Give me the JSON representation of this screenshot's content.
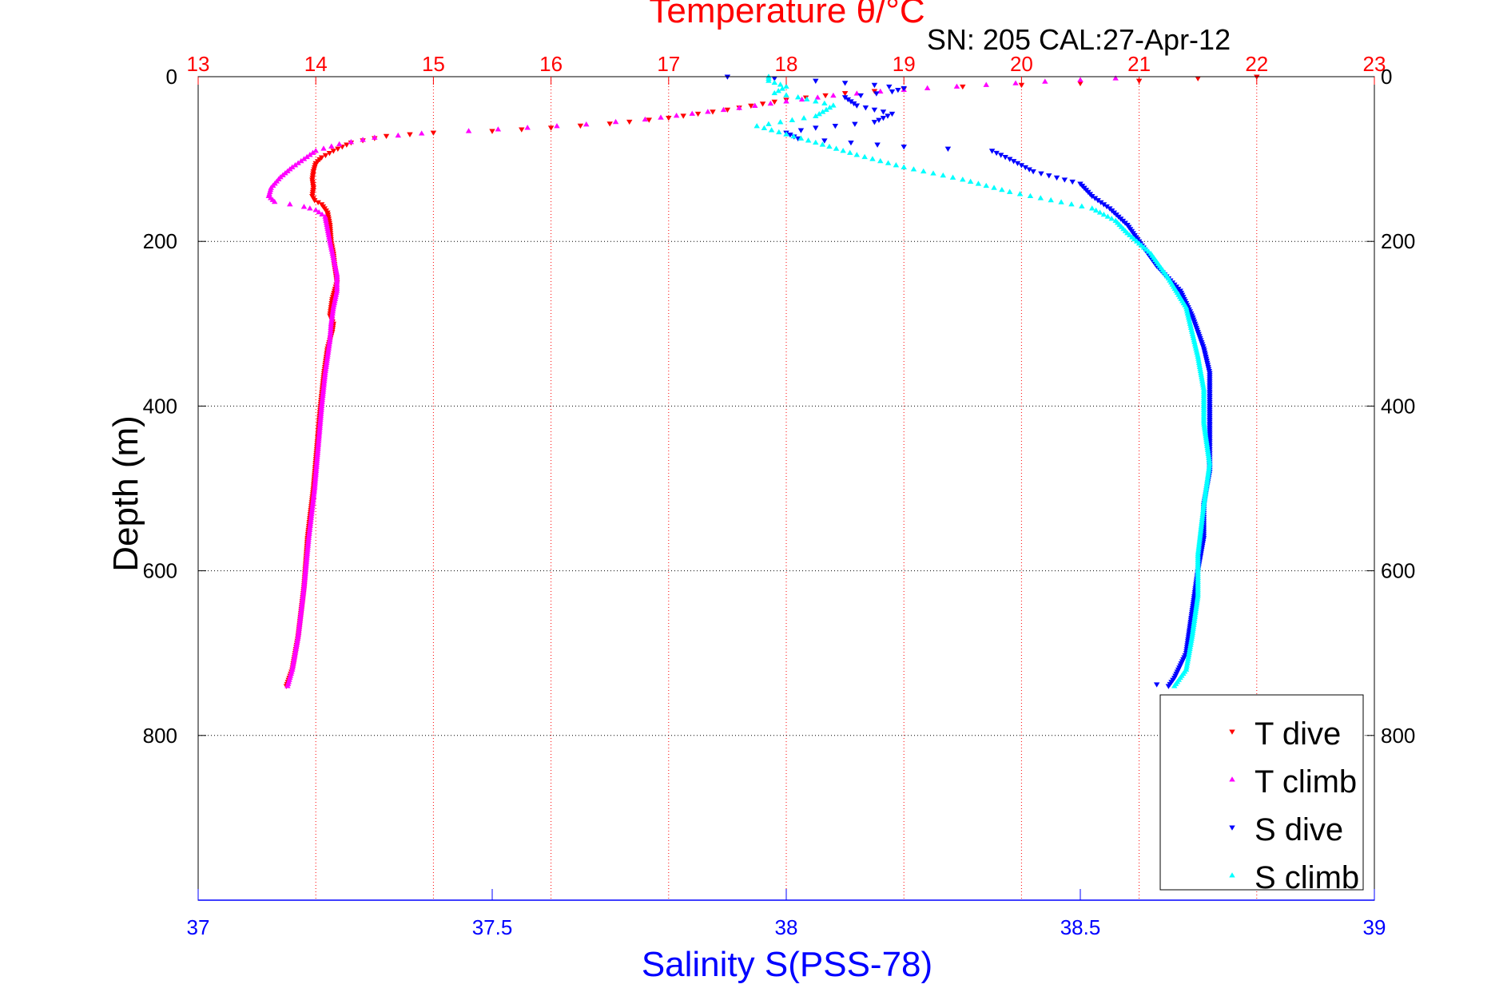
{
  "chart_data": {
    "type": "scatter",
    "title": "Temperature θ/°C",
    "subtitle": "SN: 205  CAL:27-Apr-12",
    "xlabel_bottom": "Salinity S(PSS-78)",
    "ylabel": "Depth (m)",
    "colors": {
      "temperature_axis": "#ff0000",
      "salinity_axis": "#0000ff",
      "T dive": "#ff0000",
      "T climb": "#ff00ff",
      "S dive": "#0000ff",
      "S climb": "#00ffff"
    },
    "axes": {
      "temperature": {
        "range": [
          13,
          23
        ],
        "ticks": [
          13,
          14,
          15,
          16,
          17,
          18,
          19,
          20,
          21,
          22,
          23
        ],
        "position": "top",
        "grid": true
      },
      "salinity": {
        "range": [
          37,
          39
        ],
        "ticks": [
          37,
          37.5,
          38,
          38.5,
          39
        ],
        "tick_labels": [
          "37",
          "37.5",
          "38",
          "38.5",
          "39"
        ],
        "position": "bottom"
      },
      "depth": {
        "range": [
          0,
          1000
        ],
        "ticks": [
          0,
          200,
          400,
          600,
          800
        ],
        "reversed": true,
        "grid": true,
        "position": "left and right"
      }
    },
    "legend": {
      "placement": "bottom-right",
      "entries": [
        "T dive",
        "T climb",
        "S dive",
        "S climb"
      ]
    },
    "series": [
      {
        "name": "T dive",
        "axis": "temperature",
        "marker": "triangle-down",
        "points": [
          [
            22.0,
            0
          ],
          [
            21.5,
            2
          ],
          [
            21.0,
            5
          ],
          [
            20.5,
            8
          ],
          [
            20.0,
            10
          ],
          [
            19.5,
            12
          ],
          [
            19.0,
            15
          ],
          [
            18.5,
            20
          ],
          [
            18.0,
            28
          ],
          [
            17.5,
            40
          ],
          [
            17.0,
            50
          ],
          [
            16.5,
            57
          ],
          [
            16.0,
            62
          ],
          [
            15.5,
            66
          ],
          [
            15.0,
            68
          ],
          [
            14.6,
            72
          ],
          [
            14.3,
            80
          ],
          [
            14.15,
            90
          ],
          [
            14.05,
            98
          ],
          [
            14.0,
            105
          ],
          [
            13.98,
            115
          ],
          [
            13.97,
            125
          ],
          [
            13.98,
            135
          ],
          [
            13.97,
            145
          ],
          [
            13.99,
            150
          ],
          [
            14.05,
            155
          ],
          [
            14.1,
            165
          ],
          [
            14.12,
            180
          ],
          [
            14.13,
            200
          ],
          [
            14.15,
            215
          ],
          [
            14.16,
            230
          ],
          [
            14.18,
            250
          ],
          [
            14.14,
            270
          ],
          [
            14.12,
            290
          ],
          [
            14.15,
            300
          ],
          [
            14.14,
            310
          ],
          [
            14.1,
            330
          ],
          [
            14.07,
            360
          ],
          [
            14.04,
            400
          ],
          [
            14.01,
            450
          ],
          [
            13.98,
            500
          ],
          [
            13.93,
            560
          ],
          [
            13.9,
            620
          ],
          [
            13.85,
            680
          ],
          [
            13.8,
            720
          ],
          [
            13.75,
            740
          ]
        ]
      },
      {
        "name": "T climb",
        "axis": "temperature",
        "marker": "triangle-up",
        "points": [
          [
            20.8,
            2
          ],
          [
            20.2,
            6
          ],
          [
            19.7,
            10
          ],
          [
            19.2,
            14
          ],
          [
            18.8,
            18
          ],
          [
            18.4,
            23
          ],
          [
            18.0,
            30
          ],
          [
            17.6,
            38
          ],
          [
            17.2,
            45
          ],
          [
            16.8,
            52
          ],
          [
            16.3,
            58
          ],
          [
            15.8,
            62
          ],
          [
            15.3,
            66
          ],
          [
            14.9,
            69
          ],
          [
            14.5,
            74
          ],
          [
            14.2,
            82
          ],
          [
            14.0,
            90
          ],
          [
            13.9,
            100
          ],
          [
            13.8,
            110
          ],
          [
            13.7,
            122
          ],
          [
            13.62,
            135
          ],
          [
            13.6,
            145
          ],
          [
            13.65,
            152
          ],
          [
            13.78,
            155
          ],
          [
            13.9,
            158
          ],
          [
            14.0,
            162
          ],
          [
            14.08,
            170
          ],
          [
            14.1,
            185
          ],
          [
            14.12,
            200
          ],
          [
            14.15,
            220
          ],
          [
            14.18,
            240
          ],
          [
            14.18,
            260
          ],
          [
            14.15,
            280
          ],
          [
            14.13,
            300
          ],
          [
            14.12,
            320
          ],
          [
            14.1,
            340
          ],
          [
            14.08,
            360
          ],
          [
            14.05,
            400
          ],
          [
            14.02,
            450
          ],
          [
            13.99,
            500
          ],
          [
            13.94,
            560
          ],
          [
            13.9,
            620
          ],
          [
            13.85,
            680
          ],
          [
            13.8,
            720
          ],
          [
            13.76,
            740
          ]
        ]
      },
      {
        "name": "S dive",
        "axis": "salinity",
        "marker": "triangle-down",
        "points": [
          [
            37.9,
            0
          ],
          [
            37.98,
            2
          ],
          [
            38.05,
            5
          ],
          [
            38.15,
            10
          ],
          [
            38.2,
            14
          ],
          [
            38.18,
            18
          ],
          [
            38.1,
            25
          ],
          [
            38.12,
            35
          ],
          [
            38.18,
            45
          ],
          [
            38.15,
            55
          ],
          [
            38.05,
            62
          ],
          [
            38.0,
            68
          ],
          [
            38.02,
            75
          ],
          [
            38.2,
            85
          ],
          [
            38.35,
            90
          ],
          [
            38.38,
            100
          ],
          [
            38.42,
            115
          ],
          [
            38.5,
            130
          ],
          [
            38.52,
            145
          ],
          [
            38.55,
            160
          ],
          [
            38.58,
            180
          ],
          [
            38.6,
            200
          ],
          [
            38.63,
            230
          ],
          [
            38.67,
            260
          ],
          [
            38.69,
            290
          ],
          [
            38.7,
            310
          ],
          [
            38.71,
            330
          ],
          [
            38.72,
            360
          ],
          [
            38.72,
            400
          ],
          [
            38.72,
            450
          ],
          [
            38.72,
            480
          ],
          [
            38.71,
            520
          ],
          [
            38.71,
            560
          ],
          [
            38.7,
            600
          ],
          [
            38.69,
            650
          ],
          [
            38.68,
            700
          ],
          [
            38.66,
            730
          ],
          [
            38.65,
            740
          ],
          [
            38.63,
            738
          ]
        ]
      },
      {
        "name": "S climb",
        "axis": "salinity",
        "marker": "triangle-up",
        "points": [
          [
            37.97,
            0
          ],
          [
            37.97,
            5
          ],
          [
            38.0,
            12
          ],
          [
            37.98,
            20
          ],
          [
            38.02,
            25
          ],
          [
            38.08,
            35
          ],
          [
            38.05,
            48
          ],
          [
            37.95,
            60
          ],
          [
            38.0,
            70
          ],
          [
            38.05,
            80
          ],
          [
            38.12,
            95
          ],
          [
            38.2,
            110
          ],
          [
            38.3,
            125
          ],
          [
            38.38,
            140
          ],
          [
            38.45,
            150
          ],
          [
            38.52,
            160
          ],
          [
            38.56,
            175
          ],
          [
            38.58,
            190
          ],
          [
            38.62,
            215
          ],
          [
            38.65,
            245
          ],
          [
            38.68,
            280
          ],
          [
            38.69,
            310
          ],
          [
            38.7,
            340
          ],
          [
            38.71,
            380
          ],
          [
            38.71,
            420
          ],
          [
            38.72,
            470
          ],
          [
            38.71,
            520
          ],
          [
            38.7,
            580
          ],
          [
            38.7,
            630
          ],
          [
            38.69,
            680
          ],
          [
            38.68,
            720
          ],
          [
            38.66,
            740
          ]
        ]
      }
    ]
  }
}
